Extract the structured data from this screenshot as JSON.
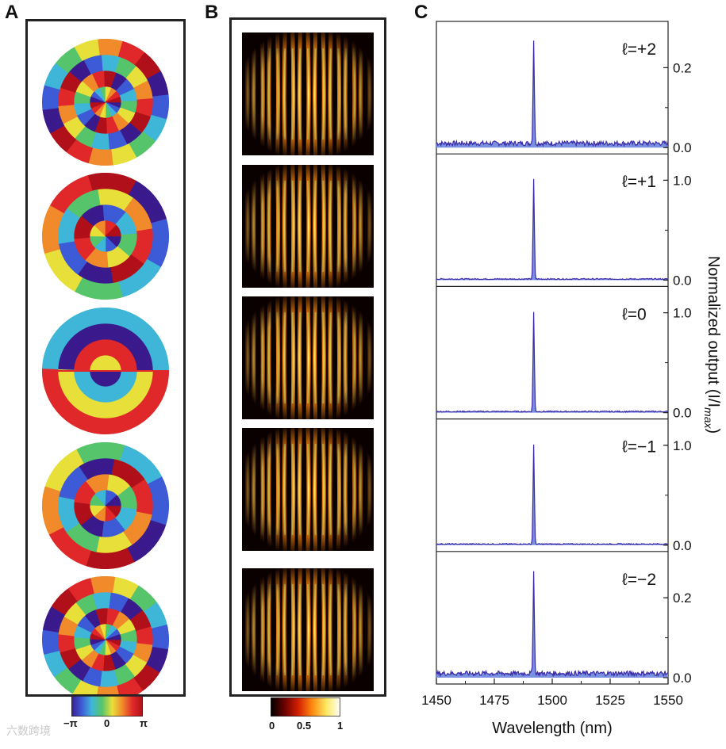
{
  "figure": {
    "panel_labels": [
      "A",
      "B",
      "C"
    ],
    "watermark": "六数跨境"
  },
  "panel_a": {
    "modes": [
      2,
      1,
      0,
      -1,
      -2
    ],
    "colorbar": {
      "min_label": "−π",
      "mid_label": "0",
      "max_label": "π",
      "colors": [
        "#3a1a8c",
        "#3d5bd6",
        "#3fb6d8",
        "#56c46b",
        "#e8e03a",
        "#f08a2a",
        "#e0282a",
        "#b0101a"
      ]
    }
  },
  "panel_b": {
    "colorbar": {
      "min_label": "0",
      "mid_label": "0.5",
      "max_label": "1",
      "colors": [
        "#000000",
        "#6a0000",
        "#d42000",
        "#ff8a10",
        "#ffe860",
        "#ffffff"
      ]
    }
  },
  "chart_data": {
    "type": "line",
    "title": "",
    "xlabel": "Wavelength (nm)",
    "ylabel": "Normalized output (I/I",
    "ylabel_sub": "max",
    "ylabel_close": ")",
    "xlim": [
      1450,
      1550
    ],
    "x_ticks": [
      1450,
      1475,
      1500,
      1525,
      1550
    ],
    "line_color": "#3a2aa8",
    "fill_color": "#7a90e0",
    "peak_wavelength": 1492,
    "subplots": [
      {
        "label": "ℓ=+2",
        "ylim": [
          0,
          0.3
        ],
        "y_tick_labels": [
          0.0,
          0.2
        ],
        "peak": 0.26,
        "noise": 0.012
      },
      {
        "label": "ℓ=+1",
        "ylim": [
          0,
          1.2
        ],
        "y_tick_labels": [
          0.0,
          1.0
        ],
        "peak": 1.0,
        "noise": 0.012
      },
      {
        "label": "ℓ=0",
        "ylim": [
          0,
          1.2
        ],
        "y_tick_labels": [
          0.0,
          1.0
        ],
        "peak": 1.0,
        "noise": 0.012
      },
      {
        "label": "ℓ=−1",
        "ylim": [
          0,
          1.2
        ],
        "y_tick_labels": [
          0.0,
          1.0
        ],
        "peak": 1.0,
        "noise": 0.012
      },
      {
        "label": "ℓ=−2",
        "ylim": [
          0,
          0.3
        ],
        "y_tick_labels": [
          0.0,
          0.2
        ],
        "peak": 0.26,
        "noise": 0.012
      }
    ]
  }
}
